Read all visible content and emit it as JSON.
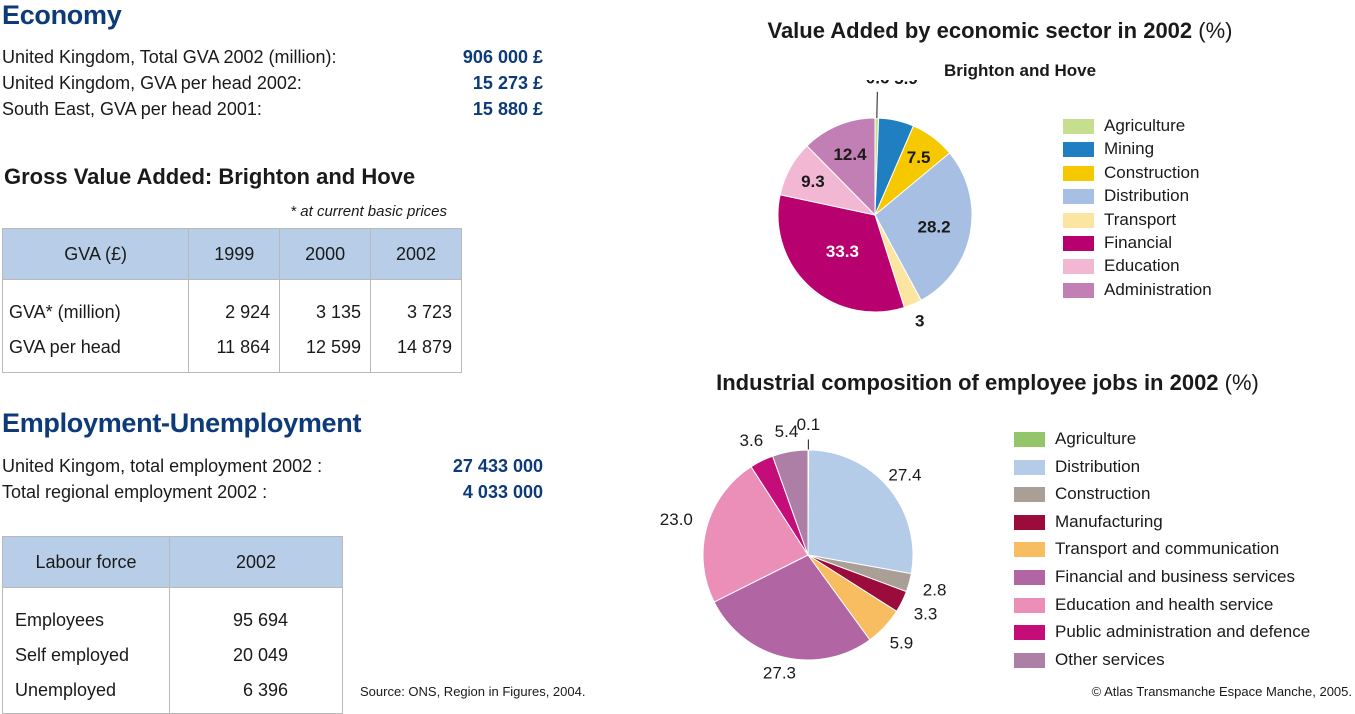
{
  "economy": {
    "title": "Economy",
    "rows": [
      {
        "label": "United Kingdom, Total GVA 2002 (million):",
        "value": "906 000 £"
      },
      {
        "label": "United Kingdom, GVA per head 2002:",
        "value": "15 273 £"
      },
      {
        "label": "South East, GVA per head 2001:",
        "value": "15 880 £"
      }
    ]
  },
  "gva_table": {
    "title": "Gross Value Added: Brighton and Hove",
    "note": "* at current basic prices",
    "headers": [
      "GVA (£)",
      "1999",
      "2000",
      "2002"
    ],
    "rows": [
      {
        "label": "GVA* (million)",
        "values": [
          "2 924",
          "3 135",
          "3 723"
        ]
      },
      {
        "label": "GVA per head",
        "values": [
          "11 864",
          "12 599",
          "14 879"
        ]
      }
    ]
  },
  "employment": {
    "title": "Employment-Unemployment",
    "rows": [
      {
        "label": "United Kingom, total employment 2002 :",
        "value": "27 433 000"
      },
      {
        "label": "Total regional employment 2002 :",
        "value": "4 033 000"
      }
    ]
  },
  "labour_table": {
    "headers": [
      "Labour force",
      "2002"
    ],
    "rows": [
      {
        "label": "Employees",
        "value": "95 694"
      },
      {
        "label": "Self employed",
        "value": "20 049"
      },
      {
        "label": "Unemployed",
        "value": "6 396"
      }
    ]
  },
  "source": "Source: ONS, Region in Figures, 2004.",
  "copyright": "© Atlas Transmanche Espace Manche, 2005.",
  "chart_data": [
    {
      "type": "pie",
      "title_bold": "Value Added by economic sector in 2002",
      "title_unit": "(%)",
      "subtitle": "Brighton and Hove",
      "legend_position": "right",
      "slices": [
        {
          "label": "Agriculture",
          "value": 0.6,
          "color": "#c5df8f",
          "text": "0.6"
        },
        {
          "label": "Mining",
          "value": 5.9,
          "color": "#1f7fc1",
          "text": "5.9"
        },
        {
          "label": "Construction",
          "value": 7.5,
          "color": "#f6c800",
          "text": "7.5"
        },
        {
          "label": "Distribution",
          "value": 28.2,
          "color": "#a7bfe2",
          "text": "28.2"
        },
        {
          "label": "Transport",
          "value": 3.0,
          "color": "#fbe5a1",
          "text": "3"
        },
        {
          "label": "Financial",
          "value": 33.3,
          "color": "#b8006e",
          "text": "33.3"
        },
        {
          "label": "Education",
          "value": 9.3,
          "color": "#f2b7d3",
          "text": "9.3"
        },
        {
          "label": "Administration",
          "value": 12.4,
          "color": "#c27fb5",
          "text": "12.4"
        }
      ]
    },
    {
      "type": "pie",
      "title_bold": "Industrial composition of employee jobs in 2002",
      "title_unit": "(%)",
      "legend_position": "right",
      "slices": [
        {
          "label": "Agriculture",
          "value": 0.1,
          "color": "#93c66b",
          "text": "0.1"
        },
        {
          "label": "Distribution",
          "value": 27.4,
          "color": "#b4cce8",
          "text": "27.4"
        },
        {
          "label": "Construction",
          "value": 2.8,
          "color": "#a99f96",
          "text": "2.8"
        },
        {
          "label": "Manufacturing",
          "value": 3.3,
          "color": "#9b0b3b",
          "text": "3.3"
        },
        {
          "label": "Transport and communication",
          "value": 5.9,
          "color": "#f8bd60",
          "text": "5.9"
        },
        {
          "label": "Financial and business services",
          "value": 27.3,
          "color": "#b166a3",
          "text": "27.3"
        },
        {
          "label": "Education and health service",
          "value": 23.0,
          "color": "#ec8fb8",
          "text": "23.0"
        },
        {
          "label": "Public administration and defence",
          "value": 3.6,
          "color": "#c50d7a",
          "text": "3.6"
        },
        {
          "label": "Other services",
          "value": 5.4,
          "color": "#ae7fa6",
          "text": "5.4"
        }
      ]
    }
  ]
}
